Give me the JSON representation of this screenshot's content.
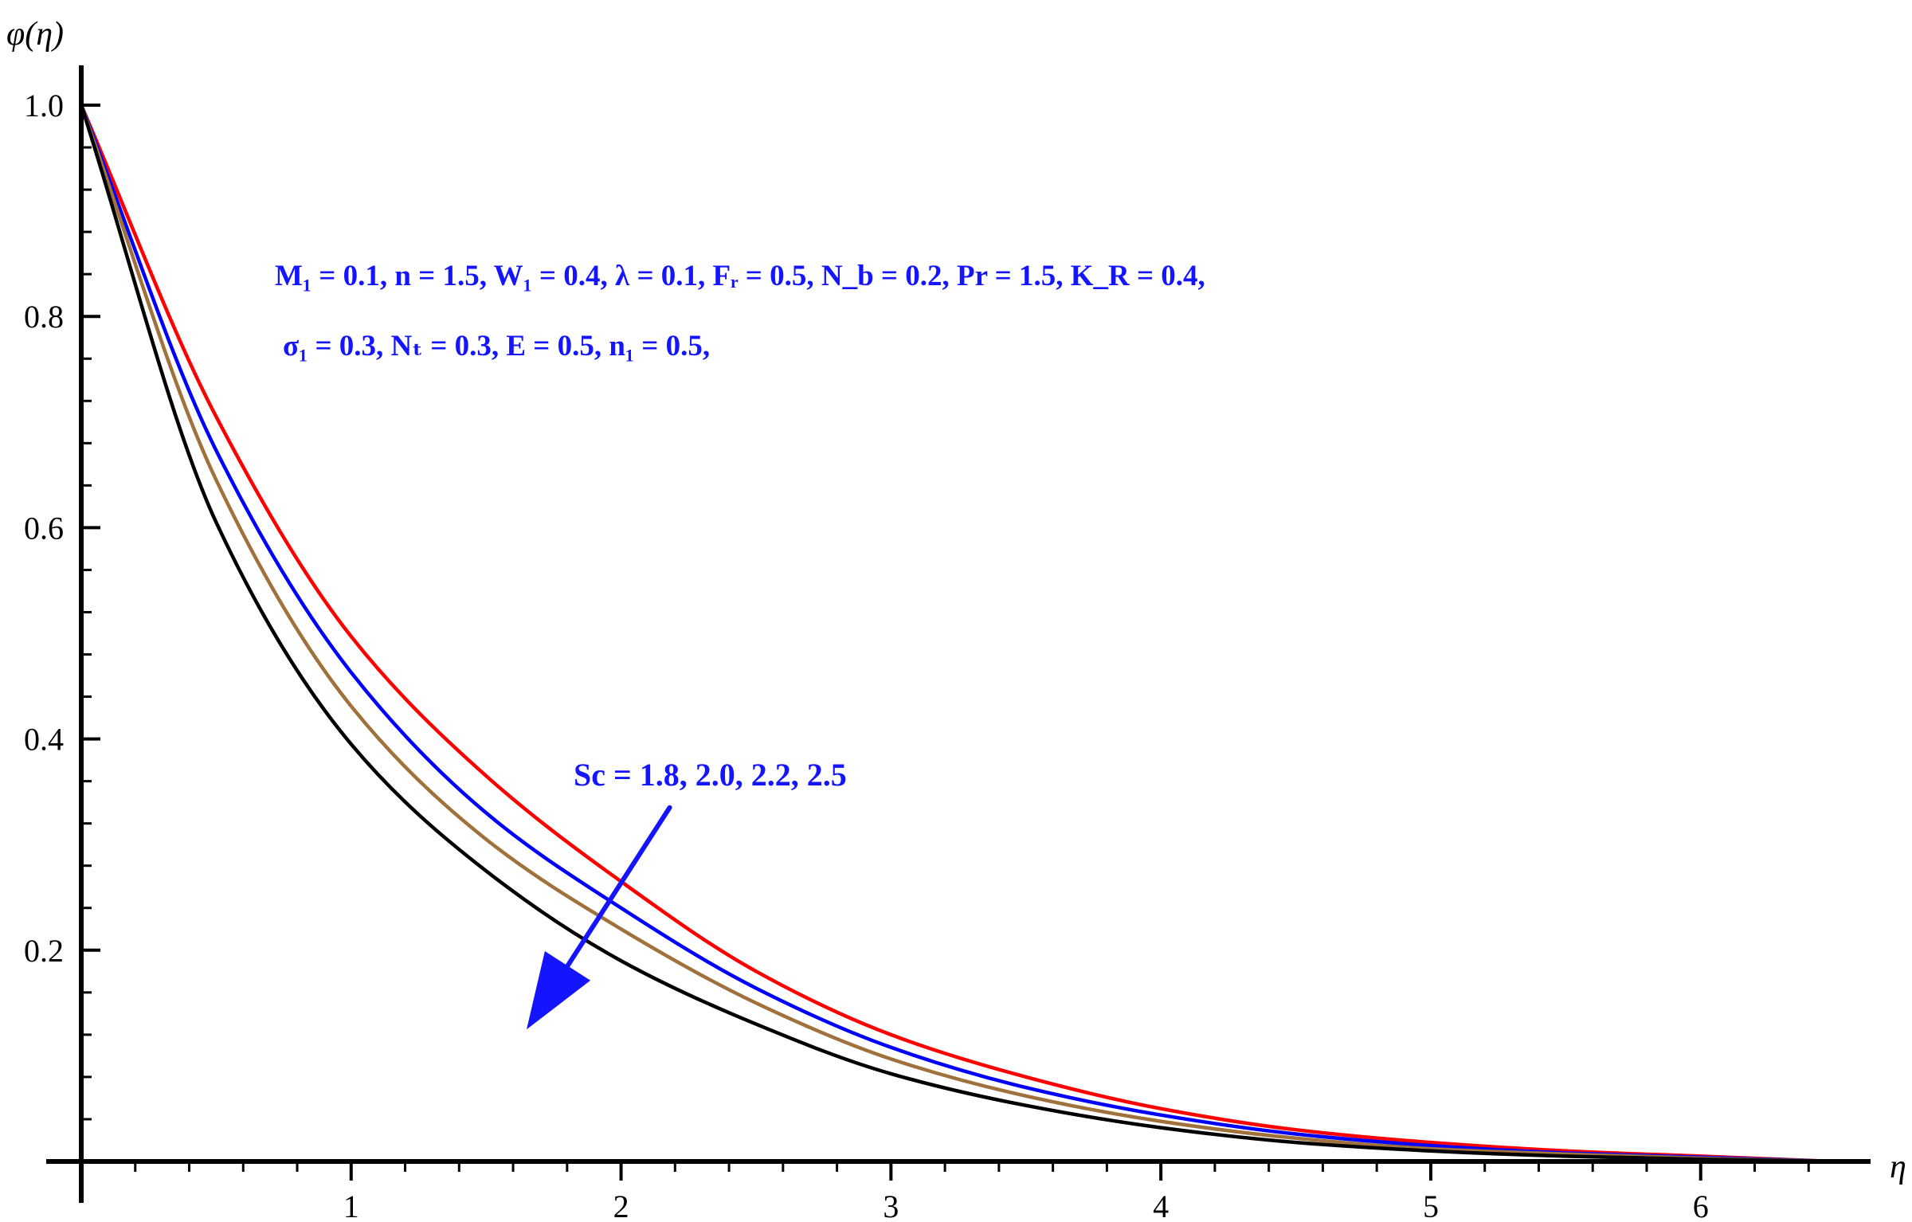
{
  "chart_data": {
    "type": "line",
    "xlabel": "η",
    "ylabel": "φ(η)",
    "xlim": [
      0,
      6.6
    ],
    "ylim": [
      0,
      1.0
    ],
    "x_ticks": [
      1,
      2,
      3,
      4,
      5,
      6
    ],
    "y_ticks": [
      0.2,
      0.4,
      0.6,
      0.8,
      1.0
    ],
    "x_tick_labels": [
      "1",
      "2",
      "3",
      "4",
      "5",
      "6"
    ],
    "y_tick_labels": [
      "0.2",
      "0.4",
      "0.6",
      "0.8",
      "1.0"
    ],
    "grid": false,
    "x": [
      0,
      0.5,
      1,
      1.5,
      2,
      2.5,
      3,
      3.5,
      4,
      4.5,
      5,
      5.5,
      6,
      6.5
    ],
    "series": [
      {
        "color": "#ff0000",
        "values": [
          1.0,
          0.705,
          0.497,
          0.365,
          0.265,
          0.18,
          0.12,
          0.08,
          0.05,
          0.03,
          0.018,
          0.01,
          0.005,
          0.0
        ]
      },
      {
        "color": "#0000ff",
        "values": [
          1.0,
          0.673,
          0.463,
          0.33,
          0.24,
          0.164,
          0.108,
          0.07,
          0.044,
          0.026,
          0.015,
          0.008,
          0.004,
          0.0
        ]
      },
      {
        "color": "#a0713a",
        "values": [
          1.0,
          0.645,
          0.431,
          0.305,
          0.22,
          0.15,
          0.097,
          0.062,
          0.038,
          0.022,
          0.012,
          0.007,
          0.003,
          0.0
        ]
      },
      {
        "color": "#000000",
        "values": [
          1.0,
          0.605,
          0.395,
          0.275,
          0.19,
          0.13,
          0.083,
          0.053,
          0.032,
          0.018,
          0.01,
          0.005,
          0.002,
          0.0
        ]
      }
    ],
    "annotations": {
      "params_line1": "M₁ =  0.1, n = 1.5, W₁ =  0.4,  λ = 0.1, Fᵣ = 0.5, N_b = 0.2, Pr = 1.5, K_R = 0.4,",
      "params_line2": "σ₁ = 0.3,  Nₜ = 0.3,  E = 0.5, n₁ = 0.5,",
      "sc_label": "Sc = 1.8, 2.0, 2.2, 2.5",
      "arrow_from": [
        2.18,
        0.335
      ],
      "arrow_to": [
        1.65,
        0.125
      ],
      "annotation_color": "#1414ff"
    }
  }
}
